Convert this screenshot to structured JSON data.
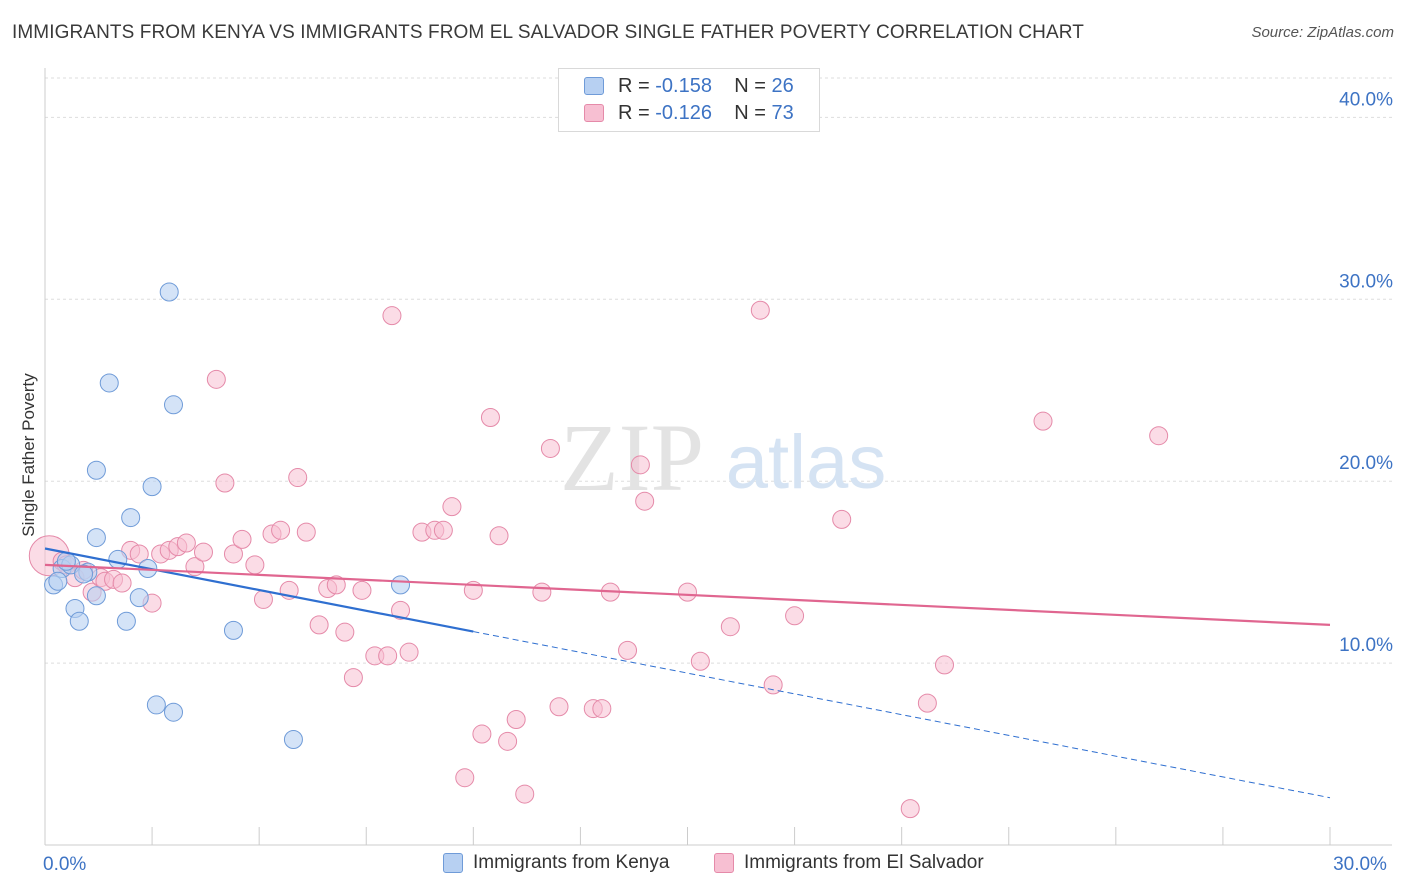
{
  "title": "IMMIGRANTS FROM KENYA VS IMMIGRANTS FROM EL SALVADOR SINGLE FATHER POVERTY CORRELATION CHART",
  "source": "Source: ZipAtlas.com",
  "watermark": {
    "zip": "ZIP",
    "atlas": "atlas"
  },
  "legend": {
    "kenya": {
      "r_label": "R = ",
      "r_value": "-0.158",
      "n_label": "N = ",
      "n_value": "26"
    },
    "elsalvador": {
      "r_label": "R = ",
      "r_value": "-0.126",
      "n_label": "N = ",
      "n_value": "73"
    }
  },
  "colors": {
    "kenya_fill": "#b7d0f2",
    "kenya_stroke": "#6f9bd8",
    "kenya_line": "#2f6fd0",
    "es_fill": "#f7bfd2",
    "es_stroke": "#e58aa9",
    "es_line": "#e06690",
    "grid": "#dddddd",
    "tick_label": "#3d73c4"
  },
  "chart_data": {
    "type": "scatter",
    "title": "IMMIGRANTS FROM KENYA VS IMMIGRANTS FROM EL SALVADOR SINGLE FATHER POVERTY CORRELATION CHART",
    "xlabel": "",
    "ylabel": "Single Father Poverty",
    "xlim": [
      0,
      30
    ],
    "ylim": [
      0,
      42
    ],
    "x_tick_labels": [
      {
        "value": 0,
        "label": "0.0%"
      },
      {
        "value": 30,
        "label": "30.0%"
      }
    ],
    "y_ticks": [
      {
        "value": 10,
        "label": "10.0%"
      },
      {
        "value": 20,
        "label": "20.0%"
      },
      {
        "value": 30,
        "label": "30.0%"
      },
      {
        "value": 40,
        "label": "40.0%"
      }
    ],
    "series": [
      {
        "name": "Immigrants from Kenya",
        "r": -0.158,
        "n": 26,
        "trend": {
          "x0": 0,
          "y0": 16.3,
          "x1": 30,
          "y1": 2.6,
          "solid_until_x": 10
        },
        "points": [
          [
            0.2,
            14.3
          ],
          [
            0.4,
            15.2
          ],
          [
            0.6,
            15.4
          ],
          [
            0.7,
            13.0
          ],
          [
            0.8,
            12.3
          ],
          [
            1.0,
            15.0
          ],
          [
            1.2,
            13.7
          ],
          [
            1.2,
            16.9
          ],
          [
            1.5,
            25.4
          ],
          [
            1.2,
            20.6
          ],
          [
            1.7,
            15.7
          ],
          [
            1.9,
            12.3
          ],
          [
            2.0,
            18.0
          ],
          [
            2.2,
            13.6
          ],
          [
            2.4,
            15.2
          ],
          [
            2.5,
            19.7
          ],
          [
            2.6,
            7.7
          ],
          [
            2.9,
            30.4
          ],
          [
            3.0,
            24.2
          ],
          [
            3.0,
            7.3
          ],
          [
            4.4,
            11.8
          ],
          [
            5.8,
            5.8
          ],
          [
            8.3,
            14.3
          ],
          [
            0.5,
            15.6
          ],
          [
            0.9,
            14.9
          ],
          [
            0.3,
            14.5
          ]
        ]
      },
      {
        "name": "Immigrants from El Salvador",
        "r": -0.126,
        "n": 73,
        "trend": {
          "x0": 0,
          "y0": 15.4,
          "x1": 30,
          "y1": 12.1
        },
        "points": [
          [
            0.1,
            15.9
          ],
          [
            0.4,
            15.6
          ],
          [
            0.5,
            15.4
          ],
          [
            0.7,
            14.7
          ],
          [
            0.9,
            15.1
          ],
          [
            1.1,
            13.9
          ],
          [
            1.3,
            14.7
          ],
          [
            1.4,
            14.5
          ],
          [
            1.6,
            14.6
          ],
          [
            1.8,
            14.4
          ],
          [
            2.0,
            16.2
          ],
          [
            2.2,
            16.0
          ],
          [
            2.5,
            13.3
          ],
          [
            2.7,
            16.0
          ],
          [
            2.9,
            16.2
          ],
          [
            3.1,
            16.4
          ],
          [
            3.3,
            16.6
          ],
          [
            3.5,
            15.3
          ],
          [
            3.7,
            16.1
          ],
          [
            4.0,
            25.6
          ],
          [
            4.2,
            19.9
          ],
          [
            4.4,
            16.0
          ],
          [
            4.6,
            16.8
          ],
          [
            4.9,
            15.4
          ],
          [
            5.1,
            13.5
          ],
          [
            5.3,
            17.1
          ],
          [
            5.5,
            17.3
          ],
          [
            5.7,
            14.0
          ],
          [
            5.9,
            20.2
          ],
          [
            6.1,
            17.2
          ],
          [
            6.4,
            12.1
          ],
          [
            6.6,
            14.1
          ],
          [
            6.8,
            14.3
          ],
          [
            7.0,
            11.7
          ],
          [
            7.2,
            9.2
          ],
          [
            7.4,
            14.0
          ],
          [
            7.7,
            10.4
          ],
          [
            8.0,
            10.4
          ],
          [
            8.1,
            29.1
          ],
          [
            8.3,
            12.9
          ],
          [
            8.5,
            10.6
          ],
          [
            8.8,
            17.2
          ],
          [
            9.1,
            17.3
          ],
          [
            9.3,
            17.3
          ],
          [
            9.5,
            18.6
          ],
          [
            9.8,
            3.7
          ],
          [
            10.0,
            14.0
          ],
          [
            10.2,
            6.1
          ],
          [
            10.4,
            23.5
          ],
          [
            10.6,
            17.0
          ],
          [
            10.8,
            5.7
          ],
          [
            11.0,
            6.9
          ],
          [
            11.2,
            2.8
          ],
          [
            11.6,
            13.9
          ],
          [
            11.8,
            21.8
          ],
          [
            12.0,
            7.6
          ],
          [
            12.8,
            7.5
          ],
          [
            13.0,
            7.5
          ],
          [
            13.2,
            13.9
          ],
          [
            13.6,
            10.7
          ],
          [
            13.9,
            20.9
          ],
          [
            14.0,
            18.9
          ],
          [
            15.0,
            13.9
          ],
          [
            15.3,
            10.1
          ],
          [
            16.0,
            12.0
          ],
          [
            16.7,
            29.4
          ],
          [
            17.0,
            8.8
          ],
          [
            17.5,
            12.6
          ],
          [
            18.6,
            17.9
          ],
          [
            20.2,
            2.0
          ],
          [
            20.6,
            7.8
          ],
          [
            21.0,
            9.9
          ],
          [
            23.3,
            23.3
          ],
          [
            26.0,
            22.5
          ]
        ]
      }
    ]
  },
  "bottom_legend": {
    "kenya": "Immigrants from Kenya",
    "elsalvador": "Immigrants from El Salvador"
  }
}
